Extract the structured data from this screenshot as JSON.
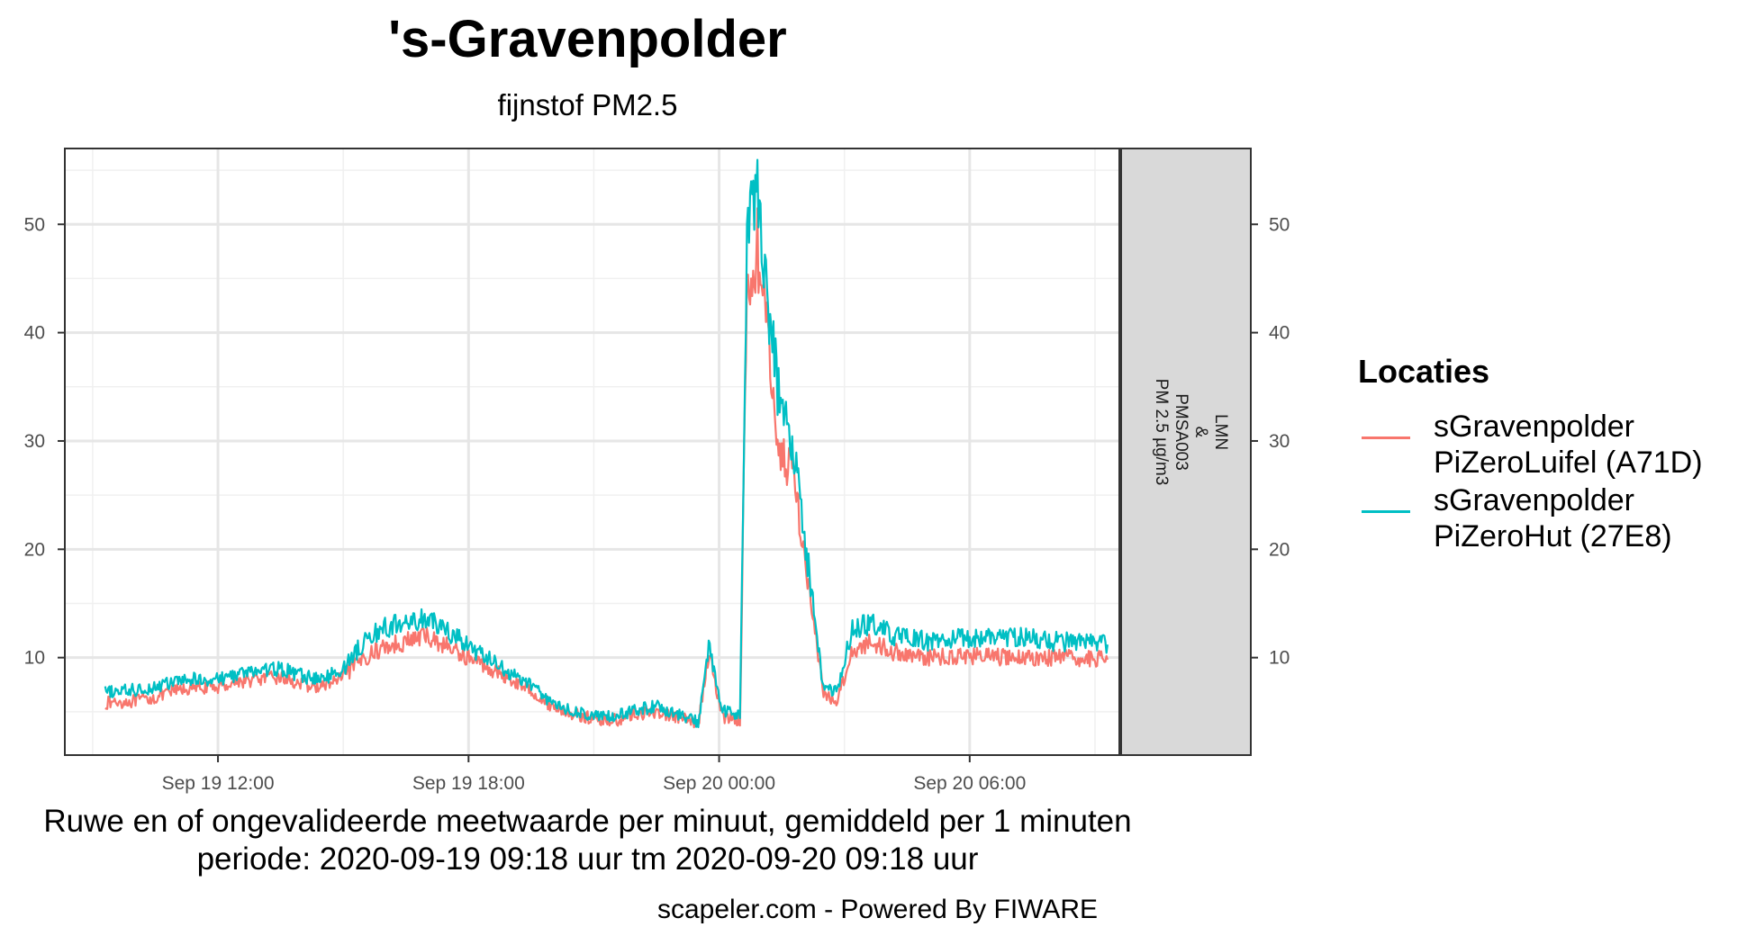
{
  "title": "'s-Gravenpolder",
  "subtitle": "fijnstof PM2.5",
  "caption_line1": "Ruwe en of ongevalideerde meetwaarde per minuut, gemiddeld per 1 minuten",
  "caption_line2": "periode: 2020-09-19 09:18 uur tm 2020-09-20 09:18 uur",
  "credit": "scapeler.com - Powered By FIWARE",
  "chart_data": {
    "type": "line",
    "title": "'s-Gravenpolder",
    "subtitle": "fijnstof PM2.5",
    "x_unit": "datetime (local)",
    "xlim": [
      "2020-09-19 08:20",
      "2020-09-20 09:35"
    ],
    "ylim": [
      1,
      57
    ],
    "x_ticks": [
      "2020-09-19 12:00",
      "2020-09-19 18:00",
      "2020-09-20 00:00",
      "2020-09-20 06:00"
    ],
    "x_tick_labels": [
      "Sep 19 12:00",
      "Sep 19 18:00",
      "Sep 20 00:00",
      "Sep 20 06:00"
    ],
    "y_ticks": [
      10,
      20,
      30,
      40,
      50
    ],
    "grid": true,
    "facet_strip": "LMN\n&\nPMSA003\nPM 2.5 µg/m3",
    "legend_title": "Locaties",
    "legend_position": "right",
    "series": [
      {
        "name": "sGravenpolder\nPiZeroLuifel (A71D)",
        "color": "#F8766D",
        "points": [
          [
            "2020-09-19 09:18",
            5.8
          ],
          [
            "2020-09-19 10:00",
            6.0
          ],
          [
            "2020-09-19 10:30",
            6.3
          ],
          [
            "2020-09-19 11:00",
            7.0
          ],
          [
            "2020-09-19 11:30",
            7.2
          ],
          [
            "2020-09-19 12:00",
            7.3
          ],
          [
            "2020-09-19 12:30",
            7.8
          ],
          [
            "2020-09-19 13:00",
            8.0
          ],
          [
            "2020-09-19 13:30",
            8.2
          ],
          [
            "2020-09-19 14:00",
            7.5
          ],
          [
            "2020-09-19 14:30",
            7.3
          ],
          [
            "2020-09-19 15:00",
            8.2
          ],
          [
            "2020-09-19 15:30",
            10.0
          ],
          [
            "2020-09-19 16:00",
            11.0
          ],
          [
            "2020-09-19 16:30",
            11.5
          ],
          [
            "2020-09-19 17:00",
            12.0
          ],
          [
            "2020-09-19 17:30",
            11.0
          ],
          [
            "2020-09-19 18:00",
            10.0
          ],
          [
            "2020-09-19 18:30",
            9.0
          ],
          [
            "2020-09-19 19:00",
            8.0
          ],
          [
            "2020-09-19 19:30",
            7.0
          ],
          [
            "2020-09-19 20:00",
            5.5
          ],
          [
            "2020-09-19 20:30",
            4.8
          ],
          [
            "2020-09-19 21:00",
            4.3
          ],
          [
            "2020-09-19 21:30",
            4.2
          ],
          [
            "2020-09-19 22:00",
            4.8
          ],
          [
            "2020-09-19 22:30",
            5.0
          ],
          [
            "2020-09-19 23:00",
            4.5
          ],
          [
            "2020-09-19 23:30",
            3.8
          ],
          [
            "2020-09-19 23:45",
            10.5
          ],
          [
            "2020-09-20 00:05",
            4.5
          ],
          [
            "2020-09-20 00:30",
            4.3
          ],
          [
            "2020-09-20 00:40",
            44.0
          ],
          [
            "2020-09-20 00:55",
            48.0
          ],
          [
            "2020-09-20 01:15",
            36.0
          ],
          [
            "2020-09-20 01:30",
            28.0
          ],
          [
            "2020-09-20 01:45",
            28.0
          ],
          [
            "2020-09-20 02:10",
            16.0
          ],
          [
            "2020-09-20 02:30",
            6.5
          ],
          [
            "2020-09-20 02:50",
            6.0
          ],
          [
            "2020-09-20 03:10",
            10.5
          ],
          [
            "2020-09-20 03:40",
            11.5
          ],
          [
            "2020-09-20 04:10",
            10.5
          ],
          [
            "2020-09-20 05:00",
            10.0
          ],
          [
            "2020-09-20 06:00",
            10.2
          ],
          [
            "2020-09-20 07:00",
            10.0
          ],
          [
            "2020-09-20 08:00",
            10.0
          ],
          [
            "2020-09-20 09:18",
            9.8
          ]
        ]
      },
      {
        "name": "sGravenpolder\nPiZeroHut (27E8)",
        "color": "#00BFC4",
        "points": [
          [
            "2020-09-19 09:18",
            6.8
          ],
          [
            "2020-09-19 10:00",
            7.0
          ],
          [
            "2020-09-19 10:30",
            7.3
          ],
          [
            "2020-09-19 11:00",
            7.8
          ],
          [
            "2020-09-19 11:30",
            8.0
          ],
          [
            "2020-09-19 12:00",
            8.0
          ],
          [
            "2020-09-19 12:30",
            8.5
          ],
          [
            "2020-09-19 13:00",
            8.8
          ],
          [
            "2020-09-19 13:30",
            9.0
          ],
          [
            "2020-09-19 14:00",
            8.3
          ],
          [
            "2020-09-19 14:30",
            8.0
          ],
          [
            "2020-09-19 15:00",
            9.0
          ],
          [
            "2020-09-19 15:30",
            11.5
          ],
          [
            "2020-09-19 16:00",
            12.8
          ],
          [
            "2020-09-19 16:30",
            13.2
          ],
          [
            "2020-09-19 17:00",
            13.5
          ],
          [
            "2020-09-19 17:30",
            12.5
          ],
          [
            "2020-09-19 18:00",
            11.0
          ],
          [
            "2020-09-19 18:30",
            9.8
          ],
          [
            "2020-09-19 19:00",
            8.5
          ],
          [
            "2020-09-19 19:30",
            7.5
          ],
          [
            "2020-09-19 20:00",
            5.8
          ],
          [
            "2020-09-19 20:30",
            5.0
          ],
          [
            "2020-09-19 21:00",
            4.6
          ],
          [
            "2020-09-19 21:30",
            4.5
          ],
          [
            "2020-09-19 22:00",
            5.2
          ],
          [
            "2020-09-19 22:30",
            5.5
          ],
          [
            "2020-09-19 23:00",
            4.8
          ],
          [
            "2020-09-19 23:30",
            4.0
          ],
          [
            "2020-09-19 23:45",
            11.0
          ],
          [
            "2020-09-20 00:05",
            5.0
          ],
          [
            "2020-09-20 00:30",
            4.8
          ],
          [
            "2020-09-20 00:40",
            48.0
          ],
          [
            "2020-09-20 00:55",
            54.0
          ],
          [
            "2020-09-20 01:15",
            40.0
          ],
          [
            "2020-09-20 01:30",
            32.0
          ],
          [
            "2020-09-20 01:45",
            30.5
          ],
          [
            "2020-09-20 02:10",
            17.5
          ],
          [
            "2020-09-20 02:30",
            7.0
          ],
          [
            "2020-09-20 02:50",
            6.8
          ],
          [
            "2020-09-20 03:10",
            12.5
          ],
          [
            "2020-09-20 03:40",
            13.2
          ],
          [
            "2020-09-20 04:10",
            12.0
          ],
          [
            "2020-09-20 05:00",
            11.5
          ],
          [
            "2020-09-20 06:00",
            11.8
          ],
          [
            "2020-09-20 07:00",
            12.0
          ],
          [
            "2020-09-20 08:00",
            11.5
          ],
          [
            "2020-09-20 09:18",
            11.2
          ]
        ]
      }
    ]
  }
}
